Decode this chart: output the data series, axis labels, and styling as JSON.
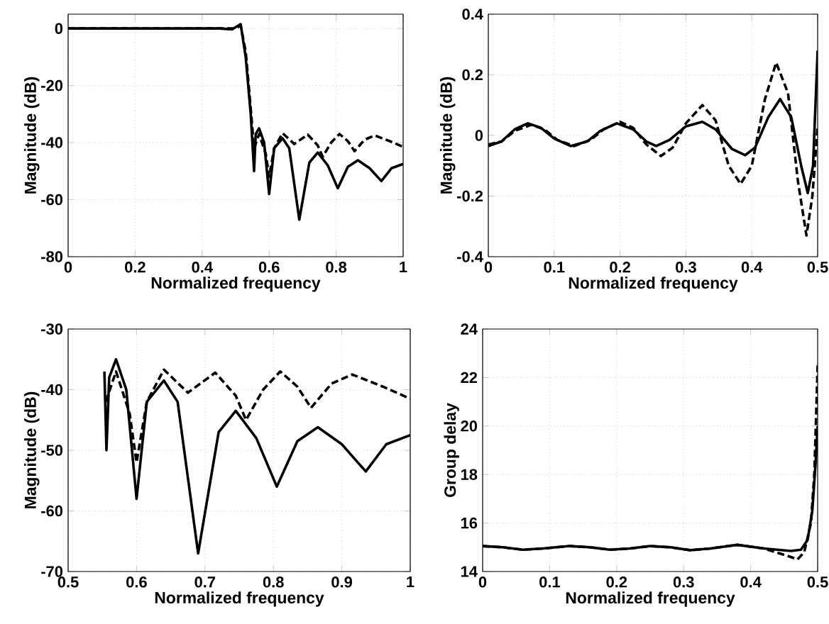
{
  "chart_data": [
    {
      "type": "line",
      "xlabel": "Normalized frequency",
      "ylabel": "Magnitude (dB)",
      "xlim": [
        0,
        1
      ],
      "ylim": [
        -80,
        5
      ],
      "xticks": [
        0,
        0.2,
        0.4,
        0.6,
        0.8,
        1
      ],
      "yticks": [
        -80,
        -60,
        -40,
        -20,
        0
      ],
      "grid": true,
      "series": [
        {
          "color": "#000000",
          "line_style": "solid",
          "x": [
            0,
            0.45,
            0.49,
            0.515,
            0.53,
            0.545,
            0.555,
            0.56,
            0.57,
            0.585,
            0.6,
            0.615,
            0.64,
            0.66,
            0.69,
            0.72,
            0.745,
            0.775,
            0.805,
            0.835,
            0.865,
            0.9,
            0.935,
            0.965,
            1
          ],
          "values": [
            0,
            0,
            -0.3,
            1.5,
            -10,
            -30,
            -50,
            -37,
            -35,
            -40,
            -58,
            -42,
            -38.5,
            -42,
            -67,
            -47,
            -43.5,
            -48,
            -56,
            -48.5,
            -46.2,
            -49,
            -53.5,
            -49,
            -47.5
          ]
        },
        {
          "color": "#000000",
          "line_style": "dashed",
          "x": [
            0,
            0.5,
            0.515,
            0.53,
            0.545,
            0.555,
            0.57,
            0.59,
            0.6,
            0.615,
            0.64,
            0.675,
            0.715,
            0.745,
            0.76,
            0.785,
            0.81,
            0.835,
            0.855,
            0.885,
            0.915,
            0.96,
            1
          ],
          "values": [
            0,
            0,
            1,
            -8,
            -28,
            -42,
            -37,
            -44,
            -52,
            -42,
            -36.7,
            -40.5,
            -37.2,
            -41,
            -45,
            -40,
            -37,
            -39.5,
            -43,
            -39,
            -37.5,
            -39.5,
            -41.5
          ]
        }
      ]
    },
    {
      "type": "line",
      "xlabel": "Normalized frequency",
      "ylabel": "Magnitude (dB)",
      "xlim": [
        0,
        0.5
      ],
      "ylim": [
        -0.4,
        0.4
      ],
      "xticks": [
        0,
        0.1,
        0.2,
        0.3,
        0.4,
        0.5
      ],
      "yticks": [
        -0.4,
        -0.2,
        0,
        0.2,
        0.4
      ],
      "grid": true,
      "series": [
        {
          "color": "#000000",
          "line_style": "solid",
          "x": [
            0,
            0.02,
            0.04,
            0.06,
            0.08,
            0.1,
            0.125,
            0.15,
            0.17,
            0.195,
            0.22,
            0.24,
            0.255,
            0.275,
            0.3,
            0.325,
            0.345,
            0.37,
            0.39,
            0.405,
            0.425,
            0.443,
            0.46,
            0.475,
            0.485,
            0.493,
            0.5
          ],
          "values": [
            -0.035,
            -0.02,
            0.02,
            0.04,
            0.025,
            -0.01,
            -0.035,
            -0.02,
            0.015,
            0.04,
            0.02,
            -0.02,
            -0.035,
            -0.015,
            0.03,
            0.045,
            0.02,
            -0.045,
            -0.065,
            -0.04,
            0.06,
            0.12,
            0.06,
            -0.1,
            -0.19,
            -0.1,
            0.28
          ]
        },
        {
          "color": "#000000",
          "line_style": "dashed",
          "x": [
            0,
            0.02,
            0.04,
            0.065,
            0.085,
            0.105,
            0.13,
            0.155,
            0.175,
            0.2,
            0.22,
            0.24,
            0.262,
            0.28,
            0.3,
            0.325,
            0.345,
            0.365,
            0.383,
            0.4,
            0.42,
            0.437,
            0.455,
            0.47,
            0.483,
            0.492,
            0.5
          ],
          "values": [
            -0.03,
            -0.02,
            0.015,
            0.035,
            0.02,
            -0.015,
            -0.035,
            -0.015,
            0.02,
            0.045,
            0.025,
            -0.03,
            -0.068,
            -0.04,
            0.04,
            0.1,
            0.05,
            -0.1,
            -0.16,
            -0.1,
            0.12,
            0.24,
            0.14,
            -0.15,
            -0.33,
            -0.2,
            0.03
          ]
        }
      ]
    },
    {
      "type": "line",
      "xlabel": "Normalized frequency",
      "ylabel": "Magnitude (dB)",
      "xlim": [
        0.5,
        1
      ],
      "ylim": [
        -70,
        -30
      ],
      "xticks": [
        0.5,
        0.6,
        0.7,
        0.8,
        0.9,
        1
      ],
      "yticks": [
        -70,
        -60,
        -50,
        -40,
        -30
      ],
      "grid": true,
      "series": [
        {
          "color": "#000000",
          "line_style": "solid",
          "x": [
            0.553,
            0.556,
            0.56,
            0.57,
            0.585,
            0.6,
            0.615,
            0.64,
            0.66,
            0.69,
            0.72,
            0.745,
            0.775,
            0.805,
            0.835,
            0.865,
            0.9,
            0.935,
            0.965,
            1
          ],
          "values": [
            -37,
            -50,
            -38,
            -35,
            -40,
            -58,
            -42,
            -38.5,
            -42,
            -67,
            -47,
            -43.5,
            -48,
            -56,
            -48.5,
            -46.2,
            -49,
            -53.5,
            -49,
            -47.5
          ]
        },
        {
          "color": "#000000",
          "line_style": "dashed",
          "x": [
            0.555,
            0.57,
            0.59,
            0.6,
            0.615,
            0.64,
            0.675,
            0.715,
            0.745,
            0.76,
            0.785,
            0.81,
            0.835,
            0.855,
            0.885,
            0.915,
            0.96,
            1
          ],
          "values": [
            -42,
            -37,
            -44,
            -52,
            -42,
            -36.7,
            -40.5,
            -37.2,
            -41,
            -45,
            -40,
            -37,
            -39.5,
            -43,
            -39,
            -37.5,
            -39.5,
            -41.5
          ]
        }
      ]
    },
    {
      "type": "line",
      "xlabel": "Normalized frequency",
      "ylabel": "Group delay",
      "xlim": [
        0,
        0.5
      ],
      "ylim": [
        14,
        24
      ],
      "xticks": [
        0,
        0.1,
        0.2,
        0.3,
        0.4,
        0.5
      ],
      "yticks": [
        14,
        16,
        18,
        20,
        22,
        24
      ],
      "grid": true,
      "series": [
        {
          "color": "#000000",
          "line_style": "solid",
          "x": [
            0,
            0.03,
            0.06,
            0.09,
            0.13,
            0.16,
            0.19,
            0.22,
            0.25,
            0.28,
            0.31,
            0.34,
            0.38,
            0.42,
            0.46,
            0.475,
            0.485,
            0.492,
            0.497,
            0.5
          ],
          "values": [
            15.05,
            15.0,
            14.9,
            14.95,
            15.05,
            15.0,
            14.9,
            14.95,
            15.05,
            15.0,
            14.88,
            14.95,
            15.1,
            14.95,
            14.85,
            14.9,
            15.3,
            16.5,
            18.5,
            20
          ]
        },
        {
          "color": "#000000",
          "line_style": "dashed",
          "x": [
            0,
            0.03,
            0.06,
            0.09,
            0.13,
            0.16,
            0.19,
            0.22,
            0.25,
            0.28,
            0.31,
            0.34,
            0.38,
            0.42,
            0.46,
            0.47,
            0.48,
            0.49,
            0.495,
            0.5
          ],
          "values": [
            15.05,
            15.0,
            14.9,
            14.95,
            15.05,
            15.0,
            14.9,
            14.95,
            15.05,
            15.0,
            14.88,
            14.95,
            15.1,
            14.95,
            14.6,
            14.5,
            14.8,
            16,
            18,
            22.5
          ]
        }
      ]
    }
  ]
}
